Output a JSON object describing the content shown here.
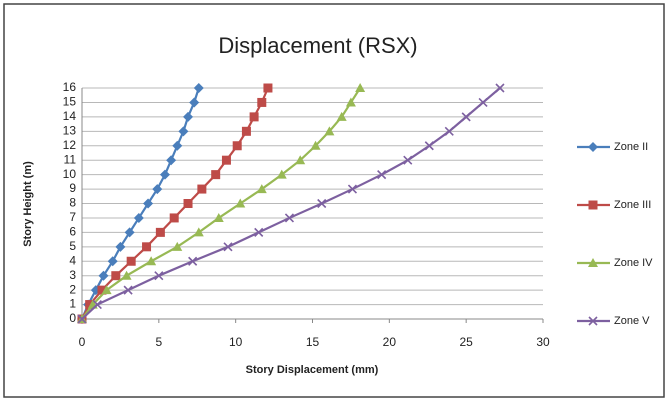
{
  "chart_data": {
    "type": "line",
    "title": "Displacement (RSX)",
    "x_label": "Story Displacement (mm)",
    "y_label": "Story  Height (m)",
    "xlim": [
      0,
      30
    ],
    "xticks": [
      0,
      5,
      10,
      15,
      20,
      25,
      30
    ],
    "ylim": [
      0,
      16
    ],
    "yticks": [
      0,
      1,
      2,
      3,
      4,
      5,
      6,
      7,
      8,
      9,
      10,
      11,
      12,
      13,
      14,
      15,
      16
    ],
    "grid": true,
    "legend": "right",
    "series": [
      {
        "name": "Zone II",
        "color": "#4a7ebb",
        "marker": "diamond",
        "x": [
          0,
          0.4,
          0.9,
          1.4,
          2.0,
          2.5,
          3.1,
          3.7,
          4.3,
          4.9,
          5.4,
          5.8,
          6.2,
          6.6,
          6.9,
          7.3,
          7.6
        ],
        "values": [
          0,
          1,
          2,
          3,
          4,
          5,
          6,
          7,
          8,
          9,
          10,
          11,
          12,
          13,
          14,
          15,
          16
        ]
      },
      {
        "name": "Zone III",
        "color": "#be4b48",
        "marker": "square",
        "x": [
          0,
          0.5,
          1.3,
          2.2,
          3.2,
          4.2,
          5.1,
          6.0,
          6.9,
          7.8,
          8.7,
          9.4,
          10.1,
          10.7,
          11.2,
          11.7,
          12.1
        ],
        "values": [
          0,
          1,
          2,
          3,
          4,
          5,
          6,
          7,
          8,
          9,
          10,
          11,
          12,
          13,
          14,
          15,
          16
        ]
      },
      {
        "name": "Zone IV",
        "color": "#98b954",
        "marker": "triangle",
        "x": [
          0,
          0.7,
          1.6,
          2.9,
          4.5,
          6.2,
          7.6,
          8.9,
          10.3,
          11.7,
          13.0,
          14.2,
          15.2,
          16.1,
          16.9,
          17.5,
          18.1
        ],
        "values": [
          0,
          1,
          2,
          3,
          4,
          5,
          6,
          7,
          8,
          9,
          10,
          11,
          12,
          13,
          14,
          15,
          16
        ]
      },
      {
        "name": "Zone V",
        "color": "#7d60a0",
        "marker": "x",
        "x": [
          0,
          1.0,
          3.0,
          5.0,
          7.2,
          9.5,
          11.5,
          13.5,
          15.6,
          17.6,
          19.5,
          21.2,
          22.6,
          23.9,
          25.0,
          26.1,
          27.2
        ],
        "values": [
          0,
          1,
          2,
          3,
          4,
          5,
          6,
          7,
          8,
          9,
          10,
          11,
          12,
          13,
          14,
          15,
          16
        ]
      }
    ]
  }
}
